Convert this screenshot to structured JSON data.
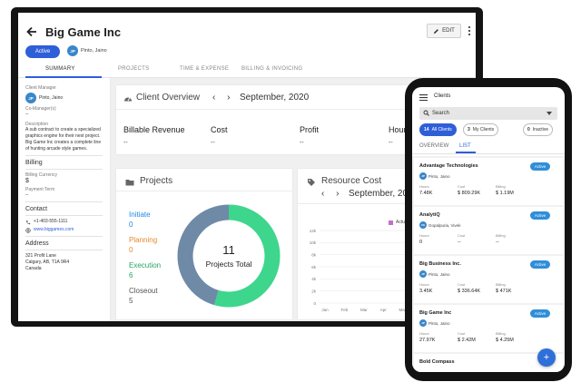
{
  "colors": {
    "accent": "#2f5fd8",
    "green": "#3dd68c",
    "slate": "#6f8aa6",
    "initiate": "#1e88e5",
    "planning": "#e58b2a",
    "execution": "#2aa366",
    "closeout": "#555555"
  },
  "desktop": {
    "header": {
      "title": "Big Game Inc",
      "edit_label": "EDIT",
      "status": "Active",
      "manager_initials": "JP",
      "manager_name": "Pinto, Jaino"
    },
    "tabs": [
      "SUMMARY",
      "PROJECTS",
      "TIME & EXPENSE",
      "BILLING & INVOICING"
    ],
    "sidebar": {
      "client_manager_label": "Client Manager",
      "client_manager_initials": "JP",
      "client_manager_name": "Pinto, Jaino",
      "co_managers_label": "Co-Manager(s)",
      "co_managers_value": "--",
      "description_label": "Description",
      "description": "A sub contract to create a specialized graphics engine for their next project. Big Game Inc creates a complete line of hunting arcade style games.",
      "billing_heading": "Billing",
      "billing_currency_label": "Billing Currency",
      "billing_currency_value": "$",
      "payment_term_label": "Payment Term",
      "payment_term_value": "--",
      "contact_heading": "Contact",
      "phone": "+1-403-555-1111",
      "website": "www.biggames.com",
      "address_heading": "Address",
      "address_line1": "321 Profit Lane",
      "address_line2": "Calgary, AB, T1A 9R4",
      "address_line3": "Canada"
    },
    "overview": {
      "title": "Client Overview",
      "prev": "‹",
      "next": "›",
      "date": "September, 2020",
      "metrics": [
        {
          "label": "Billable Revenue",
          "value": "--"
        },
        {
          "label": "Cost",
          "value": "--"
        },
        {
          "label": "Profit",
          "value": "--"
        },
        {
          "label": "Hours",
          "value": "--"
        }
      ]
    },
    "projects": {
      "title": "Projects",
      "center_value": "11",
      "center_label": "Projects Total",
      "legend": [
        {
          "label": "Initiate",
          "value": "0"
        },
        {
          "label": "Planning",
          "value": "0"
        },
        {
          "label": "Execution",
          "value": "6"
        },
        {
          "label": "Closeout",
          "value": "5"
        }
      ]
    },
    "resource_cost": {
      "title": "Resource Cost",
      "prev": "‹",
      "next": "›",
      "date": "September, 2020",
      "legend": "Actual",
      "y_ticks": [
        "12k",
        "10k",
        "8k",
        "6k",
        "4k",
        "2k",
        "0"
      ],
      "x_ticks": [
        "Jan",
        "Feb",
        "Mar",
        "Apr",
        "May",
        "Jun",
        "Jul",
        "Aug"
      ]
    }
  },
  "mobile": {
    "title": "Clients",
    "search_label": "Search",
    "chips": [
      {
        "count": "14",
        "label": "All Clients"
      },
      {
        "count": "3",
        "label": "My Clients"
      },
      {
        "count": "0",
        "label": "Inactive"
      }
    ],
    "tabs": [
      "OVERVIEW",
      "LIST"
    ],
    "field_labels": {
      "hours": "Hours",
      "cost": "Cost",
      "billing": "Billing"
    },
    "clients": [
      {
        "name": "Advantage Technologies",
        "status": "Active",
        "initials": "JP",
        "manager": "Pinto, Jaino",
        "hours": "7.48K",
        "cost": "$ 809.29K",
        "billing": "$ 1.19M"
      },
      {
        "name": "AnalytiQ",
        "status": "Active",
        "initials": "VG",
        "manager": "Gopalpuria, Vivek",
        "hours": "0",
        "cost": "--",
        "billing": "--"
      },
      {
        "name": "Big Business Inc.",
        "status": "Active",
        "initials": "JP",
        "manager": "Pinto, Jaino",
        "hours": "3.45K",
        "cost": "$ 336.64K",
        "billing": "$ 471K"
      },
      {
        "name": "Big Game Inc",
        "status": "Active",
        "initials": "JP",
        "manager": "Pinto, Jaino",
        "hours": "27.97K",
        "cost": "$ 2.42M",
        "billing": "$ 4.25M"
      },
      {
        "name": "Bold Compass",
        "status": "",
        "initials": "",
        "manager": "",
        "hours": "",
        "cost": "",
        "billing": ""
      }
    ],
    "fab": "+"
  }
}
